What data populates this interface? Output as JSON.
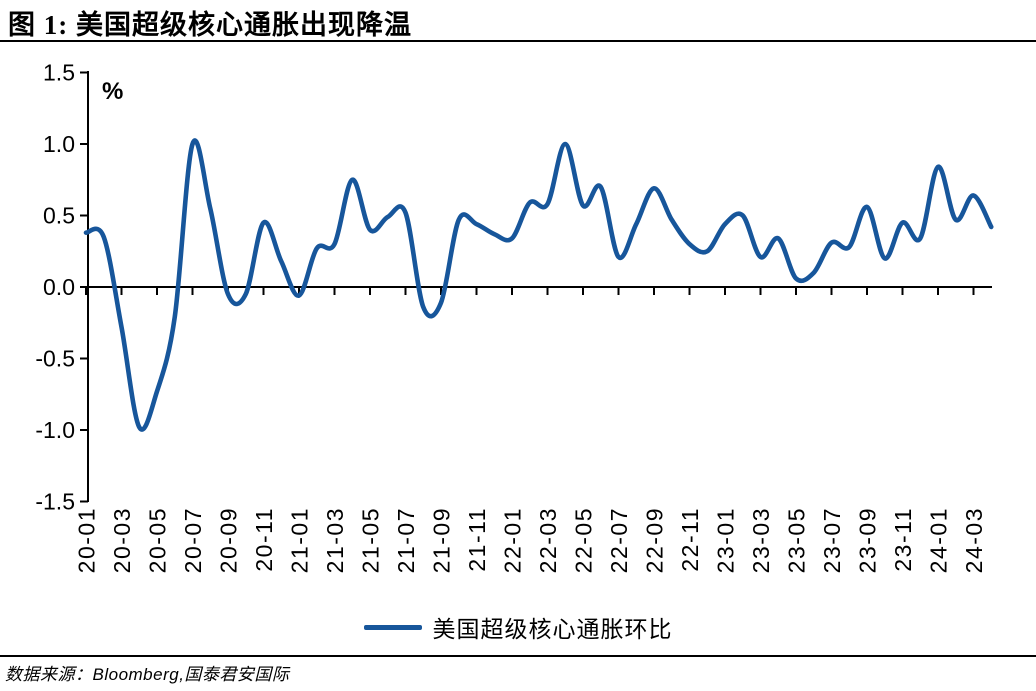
{
  "figure": {
    "title": "图 1: 美国超级核心通胀出现降温",
    "source": "数据来源：Bloomberg,国泰君安国际"
  },
  "colors": {
    "line": "#17569b",
    "axis": "#000000",
    "text": "#000000"
  },
  "chart_data": {
    "type": "line",
    "title": "美国超级核心通胀出现降温",
    "unit_label": "%",
    "ylabel": "%",
    "ylim": [
      -1.5,
      1.5
    ],
    "grid": false,
    "y_ticks": [
      "1.5",
      "1.0",
      "0.5",
      "0.0",
      "-0.5",
      "-1.0",
      "-1.5"
    ],
    "x_tick_labels": [
      "20-01",
      "20-03",
      "20-05",
      "20-07",
      "20-09",
      "20-11",
      "21-01",
      "21-03",
      "21-05",
      "21-07",
      "21-09",
      "21-11",
      "22-01",
      "22-03",
      "22-05",
      "22-07",
      "22-09",
      "22-11",
      "23-01",
      "23-03",
      "23-05",
      "23-07",
      "23-09",
      "23-11",
      "24-01",
      "24-03"
    ],
    "legend": {
      "position": "bottom",
      "entries": [
        "美国超级核心通胀环比"
      ]
    },
    "series": [
      {
        "name": "美国超级核心通胀环比",
        "color": "#17569b",
        "x": [
          "20-01",
          "20-02",
          "20-03",
          "20-04",
          "20-05",
          "20-06",
          "20-07",
          "20-08",
          "20-09",
          "20-10",
          "20-11",
          "20-12",
          "21-01",
          "21-02",
          "21-03",
          "21-04",
          "21-05",
          "21-06",
          "21-07",
          "21-08",
          "21-09",
          "21-10",
          "21-11",
          "21-12",
          "22-01",
          "22-02",
          "22-03",
          "22-04",
          "22-05",
          "22-06",
          "22-07",
          "22-08",
          "22-09",
          "22-10",
          "22-11",
          "22-12",
          "23-01",
          "23-02",
          "23-03",
          "23-04",
          "23-05",
          "23-06",
          "23-07",
          "23-08",
          "23-09",
          "23-10",
          "23-11",
          "23-12",
          "24-01",
          "24-02",
          "24-03",
          "24-04"
        ],
        "values": [
          0.38,
          0.35,
          -0.28,
          -0.98,
          -0.73,
          -0.21,
          1.0,
          0.55,
          -0.05,
          -0.05,
          0.45,
          0.18,
          -0.06,
          0.27,
          0.3,
          0.75,
          0.4,
          0.49,
          0.52,
          -0.14,
          -0.11,
          0.47,
          0.44,
          0.37,
          0.34,
          0.59,
          0.58,
          1.0,
          0.57,
          0.7,
          0.21,
          0.44,
          0.69,
          0.47,
          0.3,
          0.25,
          0.44,
          0.5,
          0.21,
          0.34,
          0.06,
          0.1,
          0.31,
          0.28,
          0.56,
          0.2,
          0.45,
          0.34,
          0.84,
          0.47,
          0.64,
          0.42
        ]
      }
    ]
  }
}
